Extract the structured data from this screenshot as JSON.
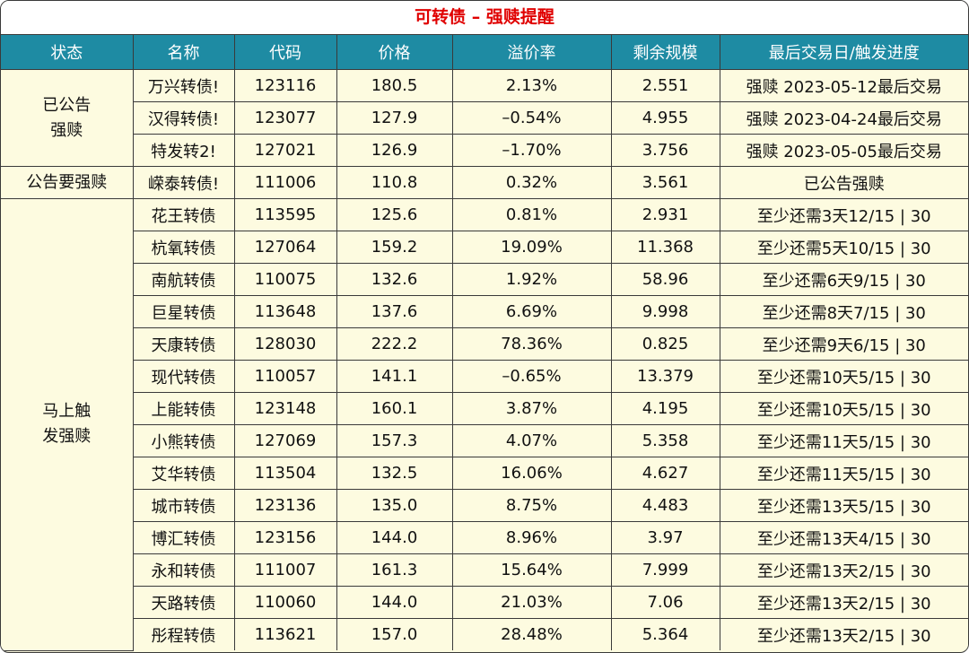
{
  "title": "可转债 – 强赎提醒",
  "headers": [
    "状态",
    "名称",
    "代码",
    "价格",
    "溢价率",
    "剩余规模",
    "最后交易日/触发进度"
  ],
  "groups": [
    {
      "status": "已公告\n强赎",
      "rows": [
        [
          "万兴转债!",
          "123116",
          "180.5",
          "2.13%",
          "2.551",
          "强赎 2023-05-12最后交易"
        ],
        [
          "汉得转债!",
          "123077",
          "127.9",
          "–0.54%",
          "4.955",
          "强赎 2023-04-24最后交易"
        ],
        [
          "特发转2!",
          "127021",
          "126.9",
          "–1.70%",
          "3.756",
          "强赎 2023-05-05最后交易"
        ]
      ]
    },
    {
      "status": "公告要强赎",
      "rows": [
        [
          "嵘泰转债!",
          "111006",
          "110.8",
          "0.32%",
          "3.561",
          "已公告强赎"
        ]
      ]
    },
    {
      "status": "马上触\n发强赎",
      "rows": [
        [
          "花王转债",
          "113595",
          "125.6",
          "0.81%",
          "2.931",
          "至少还需3天12/15 | 30"
        ],
        [
          "杭氧转债",
          "127064",
          "159.2",
          "19.09%",
          "11.368",
          "至少还需5天10/15 | 30"
        ],
        [
          "南航转债",
          "110075",
          "132.6",
          "1.92%",
          "58.96",
          "至少还需6天9/15 | 30"
        ],
        [
          "巨星转债",
          "113648",
          "137.6",
          "6.69%",
          "9.998",
          "至少还需8天7/15 | 30"
        ],
        [
          "天康转债",
          "128030",
          "222.2",
          "78.36%",
          "0.825",
          "至少还需9天6/15 | 30"
        ],
        [
          "现代转债",
          "110057",
          "141.1",
          "–0.65%",
          "13.379",
          "至少还需10天5/15 | 30"
        ],
        [
          "上能转债",
          "123148",
          "160.1",
          "3.87%",
          "4.195",
          "至少还需10天5/15 | 30"
        ],
        [
          "小熊转债",
          "127069",
          "157.3",
          "4.07%",
          "5.358",
          "至少还需11天5/15 | 30"
        ],
        [
          "艾华转债",
          "113504",
          "132.5",
          "16.06%",
          "4.627",
          "至少还需11天5/15 | 30"
        ],
        [
          "城市转债",
          "123136",
          "135.0",
          "8.75%",
          "4.483",
          "至少还需13天5/15 | 30"
        ],
        [
          "博汇转债",
          "123156",
          "144.0",
          "8.96%",
          "3.97",
          "至少还需13天4/15 | 30"
        ],
        [
          "永和转债",
          "111007",
          "161.3",
          "15.64%",
          "7.999",
          "至少还需13天2/15 | 30"
        ],
        [
          "天路转债",
          "110060",
          "144.0",
          "21.03%",
          "7.06",
          "至少还需13天2/15 | 30"
        ],
        [
          "彤程转债",
          "113621",
          "157.0",
          "28.48%",
          "5.364",
          "至少还需13天2/15 | 30"
        ]
      ]
    }
  ]
}
